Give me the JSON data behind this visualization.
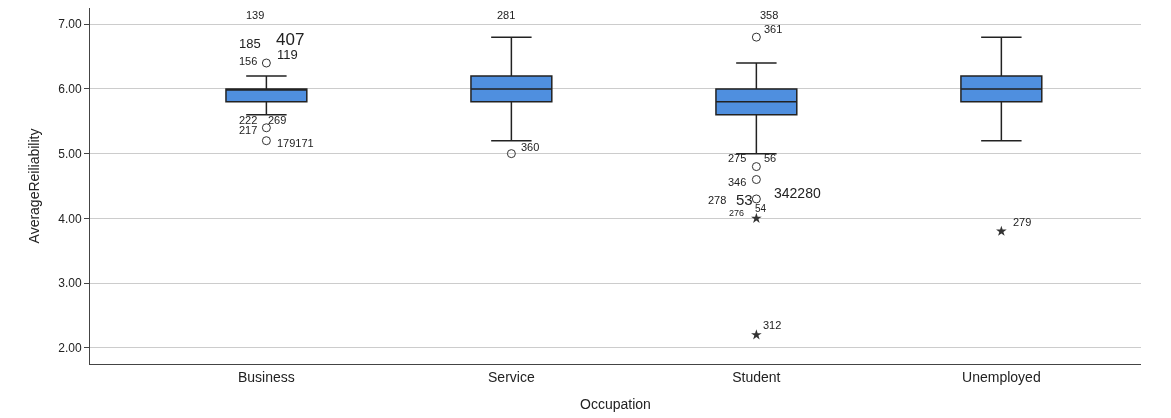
{
  "chart_data": {
    "type": "box",
    "xlabel": "Occupation",
    "ylabel": "AverageReiliability",
    "categories": [
      "Business",
      "Service",
      "Student",
      "Unemployed"
    ],
    "series": [
      {
        "color": "#4f8fdf",
        "boxes": [
          {
            "low": 5.6,
            "q1": 5.8,
            "median": 6.0,
            "q3": 6.0,
            "high": 6.2,
            "outliers": [
              6.4,
              5.4,
              5.2
            ]
          },
          {
            "low": 5.2,
            "q1": 5.8,
            "median": 6.0,
            "q3": 6.2,
            "high": 6.8,
            "outliers": [
              5.0
            ]
          },
          {
            "low": 5.0,
            "q1": 5.6,
            "median": 5.8,
            "q3": 6.0,
            "high": 6.4,
            "outliers": [
              6.8,
              4.8,
              4.6,
              4.3
            ]
          },
          {
            "low": 5.2,
            "q1": 5.8,
            "median": 6.0,
            "q3": 6.2,
            "high": 6.8
          }
        ]
      },
      {
        "type": "scatter",
        "marker": "star",
        "color": "#333333",
        "x": [
          "Student",
          "Student",
          "Unemployed"
        ],
        "values": [
          4.0,
          2.2,
          3.8
        ]
      }
    ],
    "ylim": [
      1.75,
      7.25
    ],
    "yticks": [
      {
        "value": 2,
        "label": "2.00"
      },
      {
        "value": 3,
        "label": "3.00"
      },
      {
        "value": 4,
        "label": "4.00"
      },
      {
        "value": 5,
        "label": "5.00"
      },
      {
        "value": 6,
        "label": "6.00"
      },
      {
        "value": 7,
        "label": "7.00"
      }
    ],
    "grid": "y",
    "annotations": [
      "139",
      "185",
      "407",
      "119",
      "156",
      "222",
      "269",
      "217",
      "179171",
      "281",
      "360",
      "358",
      "361",
      "275",
      "56",
      "346",
      "278",
      "53",
      "342280",
      "276",
      "54",
      "312",
      "279"
    ]
  }
}
